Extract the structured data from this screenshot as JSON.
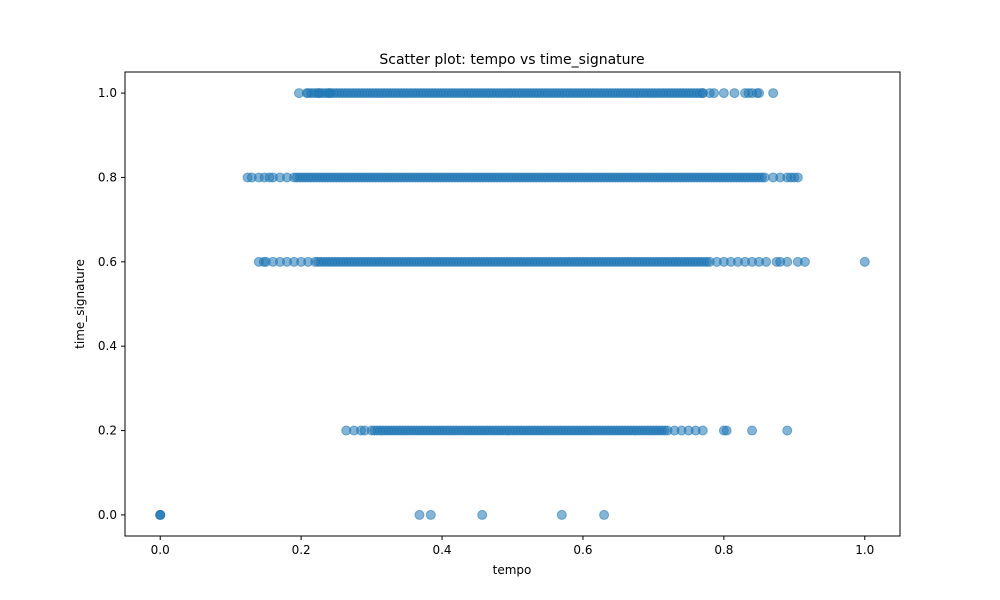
{
  "chart_data": {
    "type": "scatter",
    "title": "Scatter plot: tempo vs time_signature",
    "xlabel": "tempo",
    "ylabel": "time_signature",
    "xlim": [
      -0.05,
      1.05
    ],
    "ylim": [
      -0.05,
      1.05
    ],
    "xticks": [
      0.0,
      0.2,
      0.4,
      0.6,
      0.8,
      1.0
    ],
    "yticks": [
      0.0,
      0.2,
      0.4,
      0.6,
      0.8,
      1.0
    ],
    "xtick_labels": [
      "0.0",
      "0.2",
      "0.4",
      "0.6",
      "0.8",
      "1.0"
    ],
    "ytick_labels": [
      "0.0",
      "0.2",
      "0.4",
      "0.6",
      "0.8",
      "1.0"
    ],
    "grid": false,
    "marker_color": "#1f77b4",
    "marker_alpha": 0.55,
    "series": [
      {
        "points": [
          {
            "y": 1.0,
            "x_range": [
              0.21,
              0.77
            ]
          },
          {
            "y": 1.0,
            "x": [
              0.197,
              0.208,
              0.225,
              0.24,
              0.77,
              0.78,
              0.786,
              0.8,
              0.815,
              0.83,
              0.835,
              0.84,
              0.847,
              0.85,
              0.87
            ]
          },
          {
            "y": 0.8,
            "x_range": [
              0.19,
              0.86
            ]
          },
          {
            "y": 0.8,
            "x": [
              0.124,
              0.13,
              0.14,
              0.148,
              0.155,
              0.16,
              0.17,
              0.18,
              0.87,
              0.88,
              0.89,
              0.895,
              0.9,
              0.905
            ]
          },
          {
            "y": 0.6,
            "x_range": [
              0.22,
              0.78
            ]
          },
          {
            "y": 0.6,
            "x": [
              0.14,
              0.147,
              0.15,
              0.16,
              0.17,
              0.18,
              0.19,
              0.2,
              0.21,
              0.79,
              0.8,
              0.81,
              0.82,
              0.83,
              0.84,
              0.85,
              0.86,
              0.875,
              0.88,
              0.89,
              0.905,
              0.915,
              1.0
            ]
          },
          {
            "y": 0.2,
            "x_range": [
              0.3,
              0.72
            ]
          },
          {
            "y": 0.2,
            "x": [
              0.264,
              0.275,
              0.285,
              0.29,
              0.73,
              0.74,
              0.75,
              0.76,
              0.77,
              0.8,
              0.804,
              0.84,
              0.89
            ]
          },
          {
            "y": 0.0,
            "x": [
              0.0,
              0.0,
              0.0,
              0.368,
              0.384,
              0.457,
              0.57,
              0.63
            ]
          }
        ]
      }
    ]
  }
}
